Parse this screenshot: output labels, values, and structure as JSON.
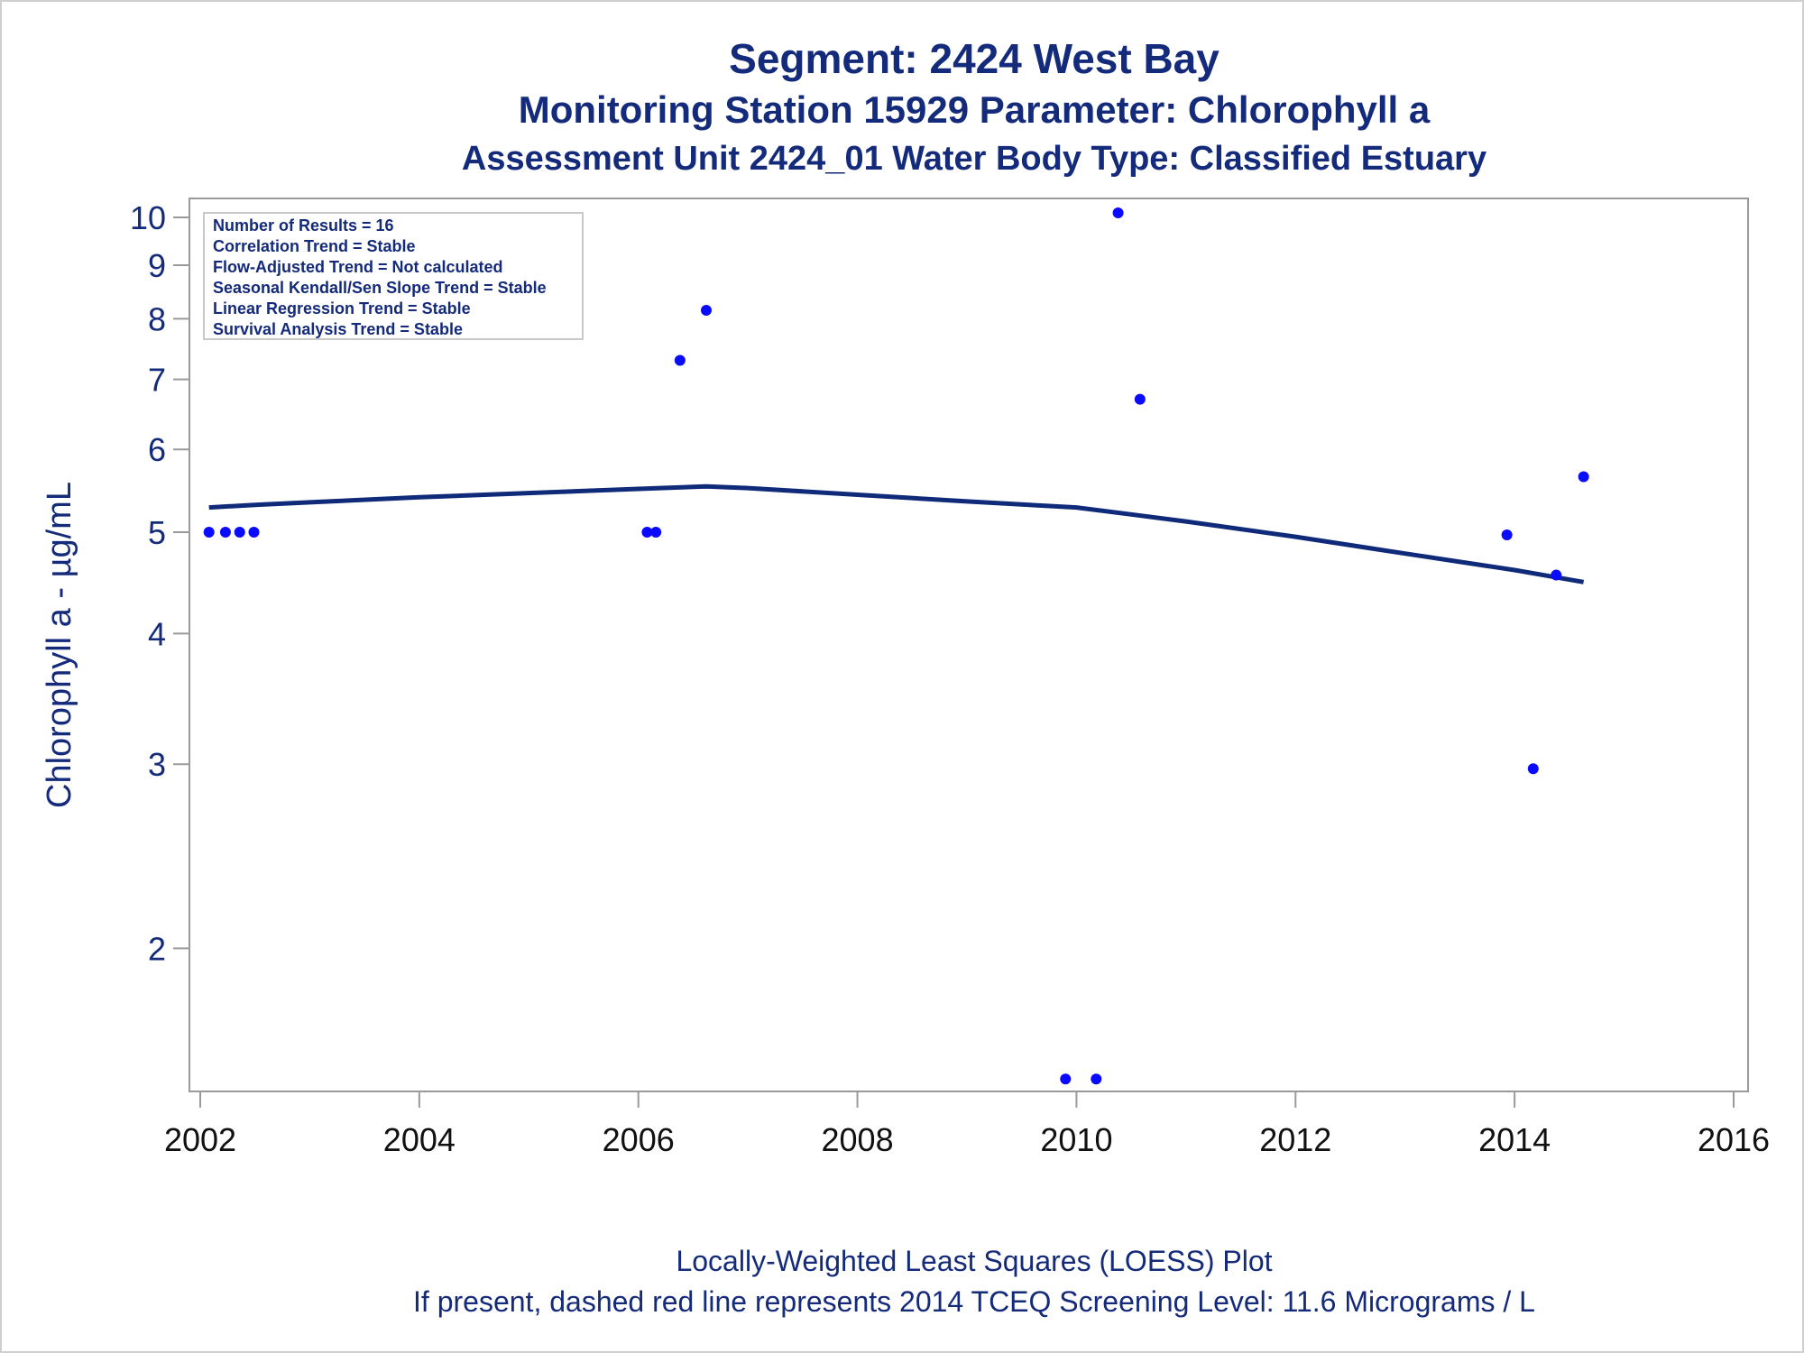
{
  "titles": {
    "line1": "Segment: 2424  West Bay",
    "line2": "Monitoring Station 15929 Parameter: Chlorophyll a",
    "line3": "Assessment Unit 2424_01   Water Body Type: Classified Estuary"
  },
  "footnotes": {
    "line1": "Locally-Weighted Least Squares (LOESS) Plot",
    "line2": "If present, dashed red line represents 2014 TCEQ Screening Level: 11.6 Micrograms / L"
  },
  "colors": {
    "text": "#142a7a",
    "points": "#0a0aff",
    "loess_line": "#0e2a78",
    "axis": "#9a9a9a"
  },
  "chart_data": {
    "type": "scatter",
    "ylabel": "Chlorophyll a -  µg/mL",
    "xlabel": "",
    "x_ticks": [
      2002,
      2004,
      2006,
      2008,
      2010,
      2012,
      2014,
      2016
    ],
    "y_ticks": [
      2,
      3,
      4,
      5,
      6,
      7,
      8,
      9,
      10
    ],
    "xlim": [
      2002,
      2016
    ],
    "ylim": [
      1.5,
      10
    ],
    "y_scale": "log",
    "legend_placement": "top-left",
    "stats_box": [
      "Number of Results = 16",
      "Correlation Trend = Stable",
      "Flow-Adjusted Trend = Not calculated",
      "Seasonal Kendall/Sen Slope Trend = Stable",
      "Linear Regression Trend = Stable",
      "Survival Analysis Trend = Stable"
    ],
    "points": [
      {
        "x": 2002.08,
        "y": 5.0
      },
      {
        "x": 2002.23,
        "y": 5.0
      },
      {
        "x": 2002.36,
        "y": 5.0
      },
      {
        "x": 2002.49,
        "y": 5.0
      },
      {
        "x": 2006.08,
        "y": 5.0
      },
      {
        "x": 2006.16,
        "y": 5.0
      },
      {
        "x": 2006.38,
        "y": 7.3
      },
      {
        "x": 2006.62,
        "y": 8.15
      },
      {
        "x": 2009.9,
        "y": 1.5
      },
      {
        "x": 2010.18,
        "y": 1.5
      },
      {
        "x": 2010.38,
        "y": 10.1
      },
      {
        "x": 2010.58,
        "y": 6.7
      },
      {
        "x": 2013.93,
        "y": 4.97
      },
      {
        "x": 2014.17,
        "y": 2.97
      },
      {
        "x": 2014.38,
        "y": 4.55
      },
      {
        "x": 2014.63,
        "y": 5.65
      }
    ],
    "loess": [
      {
        "x": 2002.08,
        "y": 5.28
      },
      {
        "x": 2002.5,
        "y": 5.31
      },
      {
        "x": 2003.0,
        "y": 5.34
      },
      {
        "x": 2004.0,
        "y": 5.4
      },
      {
        "x": 2005.0,
        "y": 5.45
      },
      {
        "x": 2006.0,
        "y": 5.5
      },
      {
        "x": 2006.62,
        "y": 5.53
      },
      {
        "x": 2007.0,
        "y": 5.51
      },
      {
        "x": 2008.0,
        "y": 5.43
      },
      {
        "x": 2009.0,
        "y": 5.35
      },
      {
        "x": 2010.0,
        "y": 5.28
      },
      {
        "x": 2010.5,
        "y": 5.2
      },
      {
        "x": 2011.0,
        "y": 5.12
      },
      {
        "x": 2012.0,
        "y": 4.95
      },
      {
        "x": 2013.0,
        "y": 4.77
      },
      {
        "x": 2014.0,
        "y": 4.6
      },
      {
        "x": 2014.63,
        "y": 4.48
      }
    ]
  }
}
